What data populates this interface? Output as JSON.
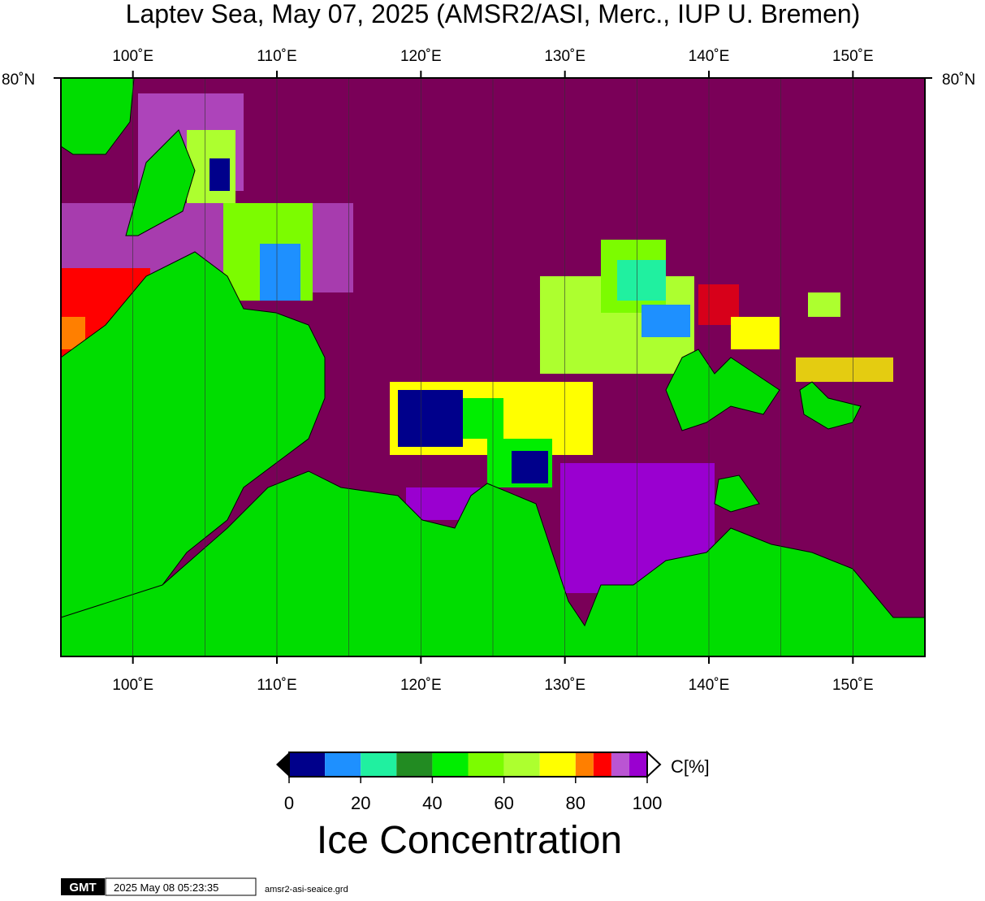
{
  "title": "Laptev Sea, May 07, 2025 (AMSR2/ASI, Merc., IUP U. Bremen)",
  "map": {
    "lonlim": [
      95,
      155
    ],
    "lonticks": [
      {
        "value": 100,
        "label": "100˚E"
      },
      {
        "value": 110,
        "label": "110˚E"
      },
      {
        "value": 120,
        "label": "120˚E"
      },
      {
        "value": 130,
        "label": "130˚E"
      },
      {
        "value": 140,
        "label": "140˚E"
      },
      {
        "value": 150,
        "label": "150˚E"
      }
    ],
    "longrid": [
      105,
      115,
      125,
      135,
      145
    ],
    "lat_label": "80˚N"
  },
  "colorbar": {
    "label": "C[%]",
    "title": "Ice Concentration",
    "range": [
      0,
      100
    ],
    "ticks": [
      0,
      20,
      40,
      60,
      80,
      100
    ],
    "bins": [
      0,
      10,
      20,
      30,
      40,
      50,
      60,
      70,
      80,
      85,
      90,
      95,
      100
    ],
    "colors": [
      "#00008b",
      "#1e90ff",
      "#20f0a0",
      "#228b22",
      "#00ee00",
      "#7cfc00",
      "#adff2f",
      "#ffff00",
      "#ff7f00",
      "#ff0000",
      "#ba55d3",
      "#9a00d0"
    ]
  },
  "footer": {
    "logo": "GMT",
    "timestamp": "2025 May 08 05:23:35",
    "file": "amsr2-asi-seaice.grd"
  }
}
